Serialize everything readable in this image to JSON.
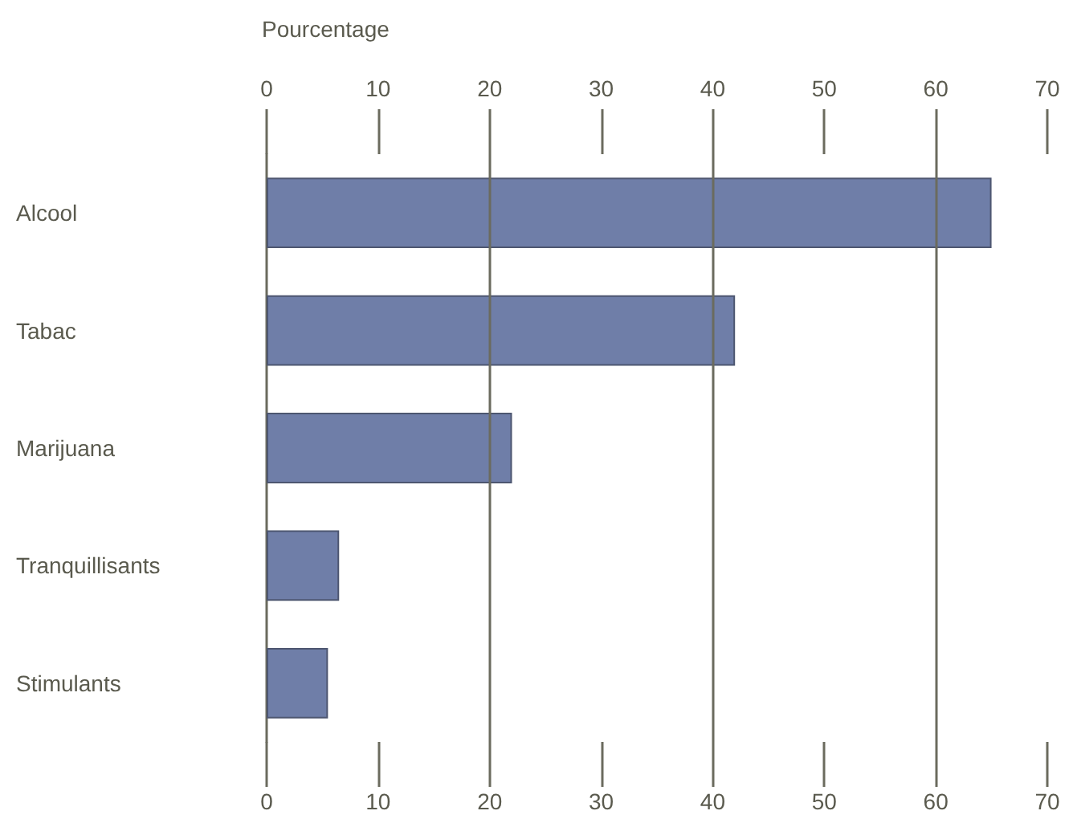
{
  "chart_data": {
    "type": "bar",
    "orientation": "horizontal",
    "x2label": "Pourcentage",
    "categories": [
      "Alcool",
      "Tabac",
      "Marijuana",
      "Tranquillisants",
      "Stimulants"
    ],
    "values": [
      65,
      42,
      22,
      6.5,
      5.5
    ],
    "color": "#6f7ea8",
    "xlim": [
      0,
      70
    ],
    "xticks": [
      0,
      10,
      20,
      30,
      40,
      50,
      60,
      70
    ],
    "x2lim": [
      0,
      70
    ],
    "x2ticks": [
      0,
      10,
      20,
      30,
      40,
      50,
      60,
      70
    ],
    "ref_lines": [
      {
        "axis": "x",
        "value": 20,
        "color": "#6b6b5e"
      },
      {
        "axis": "x",
        "value": 40,
        "color": "#6b6b5e"
      },
      {
        "axis": "x",
        "value": 60,
        "color": "#6b6b5e"
      }
    ],
    "grid": false
  }
}
